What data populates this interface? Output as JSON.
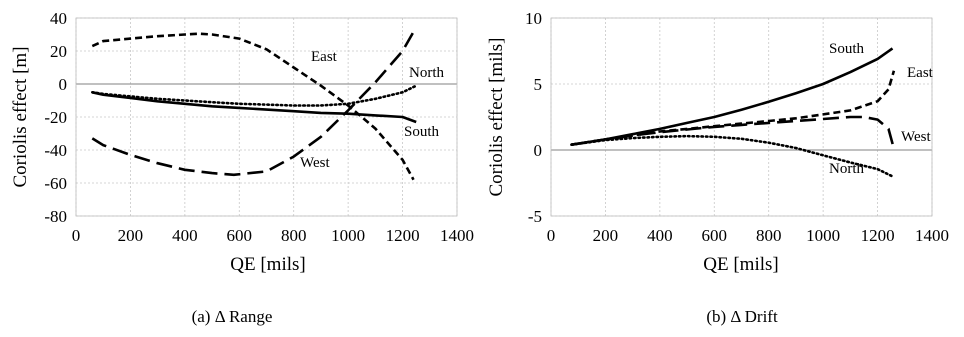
{
  "chart_data": [
    {
      "type": "line",
      "caption": "(a) Δ Range",
      "xlabel": "QE [mils]",
      "ylabel": "Coriolis effect [m]",
      "xlim": [
        0,
        1400
      ],
      "ylim": [
        -80,
        40
      ],
      "xticks": [
        "0",
        "200",
        "400",
        "600",
        "800",
        "1000",
        "1200",
        "1400"
      ],
      "yticks": [
        "40",
        "20",
        "0",
        "-20",
        "-40",
        "-60",
        "-80"
      ],
      "grid": true,
      "series": [
        {
          "name": "East",
          "x": [
            60,
            100,
            200,
            300,
            400,
            450,
            500,
            600,
            700,
            800,
            900,
            1000,
            1100,
            1200,
            1240
          ],
          "y": [
            23,
            26,
            27.5,
            29,
            30,
            30.5,
            30,
            27.5,
            21,
            10,
            -1,
            -13,
            -27,
            -46,
            -58
          ]
        },
        {
          "name": "North",
          "x": [
            60,
            100,
            200,
            300,
            400,
            500,
            600,
            700,
            800,
            900,
            1000,
            1100,
            1200,
            1250
          ],
          "y": [
            -5,
            -6,
            -7.5,
            -9,
            -10,
            -11,
            -12,
            -12.5,
            -13,
            -13,
            -12,
            -9,
            -5,
            -1
          ]
        },
        {
          "name": "South",
          "x": [
            60,
            100,
            200,
            300,
            400,
            500,
            600,
            700,
            800,
            900,
            1000,
            1100,
            1200,
            1250
          ],
          "y": [
            -5,
            -6.5,
            -8.5,
            -10.5,
            -12,
            -13.5,
            -14.5,
            -15.5,
            -16.5,
            -17.5,
            -18,
            -19,
            -20,
            -23
          ]
        },
        {
          "name": "West",
          "x": [
            60,
            100,
            200,
            300,
            400,
            500,
            580,
            700,
            800,
            900,
            1000,
            1100,
            1200,
            1245
          ],
          "y": [
            -33,
            -37,
            -43,
            -48,
            -52,
            -54,
            -55,
            -53,
            -44,
            -32,
            -16,
            1,
            20,
            33
          ]
        }
      ],
      "annotations": [
        "East",
        "North",
        "South",
        "West"
      ]
    },
    {
      "type": "line",
      "caption": "(b) Δ Drift",
      "xlabel": "QE [mils]",
      "ylabel": "Coriolis effect [mils]",
      "xlim": [
        0,
        1400
      ],
      "ylim": [
        -5,
        10
      ],
      "xticks": [
        "0",
        "200",
        "400",
        "600",
        "800",
        "1000",
        "1200",
        "1400"
      ],
      "yticks": [
        "10",
        "5",
        "0",
        "-5"
      ],
      "grid": true,
      "series": [
        {
          "name": "South",
          "x": [
            75,
            200,
            300,
            400,
            500,
            600,
            700,
            800,
            900,
            1000,
            1100,
            1200,
            1255
          ],
          "y": [
            0.4,
            0.8,
            1.2,
            1.6,
            2.05,
            2.5,
            3.05,
            3.65,
            4.3,
            5.0,
            5.9,
            6.9,
            7.7
          ]
        },
        {
          "name": "East",
          "x": [
            75,
            200,
            300,
            400,
            500,
            600,
            700,
            800,
            900,
            1000,
            1100,
            1200,
            1240,
            1260
          ],
          "y": [
            0.4,
            0.8,
            1.1,
            1.4,
            1.6,
            1.8,
            2.0,
            2.2,
            2.4,
            2.7,
            3.0,
            3.7,
            4.6,
            6.0
          ]
        },
        {
          "name": "West",
          "x": [
            75,
            200,
            300,
            400,
            500,
            600,
            700,
            800,
            900,
            1000,
            1100,
            1150,
            1200,
            1240,
            1260
          ],
          "y": [
            0.4,
            0.8,
            1.1,
            1.35,
            1.55,
            1.75,
            1.9,
            2.05,
            2.2,
            2.35,
            2.5,
            2.5,
            2.3,
            1.6,
            0.1
          ]
        },
        {
          "name": "North",
          "x": [
            75,
            200,
            300,
            400,
            500,
            600,
            700,
            800,
            900,
            1000,
            1100,
            1200,
            1255
          ],
          "y": [
            0.4,
            0.75,
            0.9,
            1.0,
            1.05,
            1.0,
            0.85,
            0.55,
            0.15,
            -0.4,
            -0.95,
            -1.45,
            -2.0
          ]
        }
      ],
      "annotations": [
        "South",
        "East",
        "West",
        "North"
      ]
    }
  ]
}
